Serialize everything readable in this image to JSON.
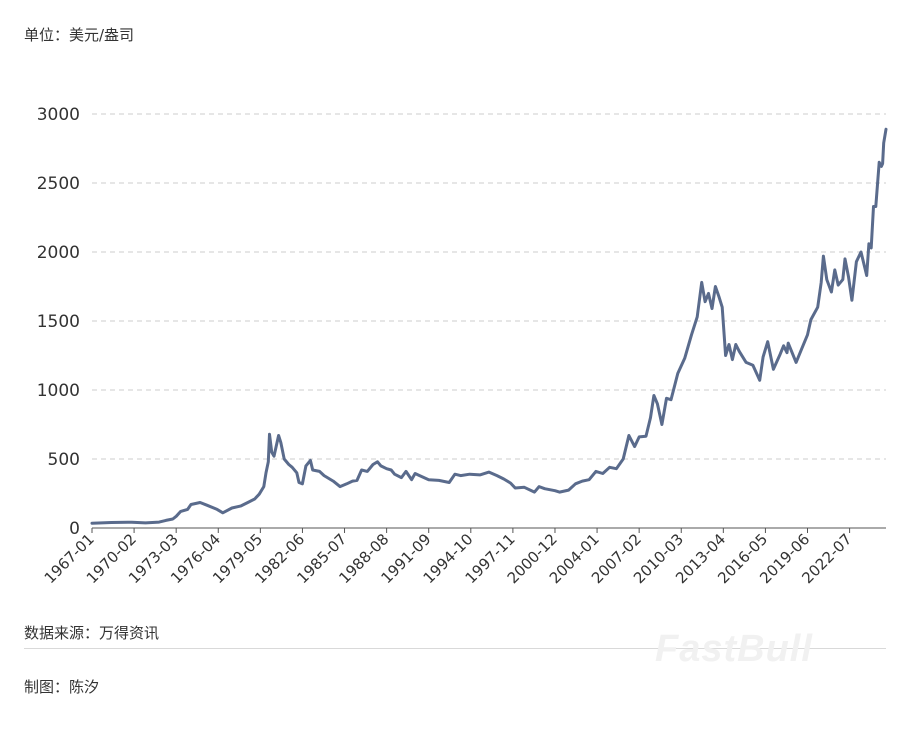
{
  "chart_data": {
    "type": "line",
    "unit_label": "单位：美元/盎司",
    "title": "",
    "xlabel": "",
    "ylabel": "",
    "ylim": [
      0,
      3000
    ],
    "y_ticks": [
      0,
      500,
      1000,
      1500,
      2000,
      2500,
      3000
    ],
    "x_tick_labels": [
      "1967-01",
      "1970-02",
      "1973-03",
      "1976-04",
      "1979-05",
      "1982-06",
      "1985-07",
      "1988-08",
      "1991-09",
      "1994-10",
      "1997-11",
      "2000-12",
      "2004-01",
      "2007-02",
      "2010-03",
      "2013-04",
      "2016-05",
      "2019-06",
      "2022-07"
    ],
    "x_range": [
      "1967-01",
      "2025-03"
    ],
    "grid": "horizontal dashed",
    "legend": "none",
    "series": [
      {
        "color": "#5a6b8c",
        "points": [
          [
            "1967-01",
            35
          ],
          [
            "1968-06",
            40
          ],
          [
            "1969-12",
            42
          ],
          [
            "1970-12",
            37
          ],
          [
            "1971-12",
            43
          ],
          [
            "1972-06",
            55
          ],
          [
            "1972-12",
            65
          ],
          [
            "1973-03",
            85
          ],
          [
            "1973-07",
            120
          ],
          [
            "1974-01",
            135
          ],
          [
            "1974-04",
            170
          ],
          [
            "1974-12",
            185
          ],
          [
            "1975-06",
            165
          ],
          [
            "1976-03",
            135
          ],
          [
            "1976-08",
            110
          ],
          [
            "1977-04",
            145
          ],
          [
            "1977-12",
            160
          ],
          [
            "1978-06",
            185
          ],
          [
            "1978-12",
            210
          ],
          [
            "1979-04",
            245
          ],
          [
            "1979-08",
            300
          ],
          [
            "1979-10",
            400
          ],
          [
            "1979-12",
            480
          ],
          [
            "1980-01",
            680
          ],
          [
            "1980-03",
            550
          ],
          [
            "1980-05",
            520
          ],
          [
            "1980-09",
            670
          ],
          [
            "1980-11",
            620
          ],
          [
            "1981-02",
            500
          ],
          [
            "1981-06",
            460
          ],
          [
            "1981-09",
            440
          ],
          [
            "1982-01",
            400
          ],
          [
            "1982-03",
            330
          ],
          [
            "1982-06",
            320
          ],
          [
            "1982-09",
            450
          ],
          [
            "1983-01",
            490
          ],
          [
            "1983-03",
            420
          ],
          [
            "1983-09",
            410
          ],
          [
            "1984-01",
            380
          ],
          [
            "1984-09",
            340
          ],
          [
            "1985-03",
            300
          ],
          [
            "1985-09",
            320
          ],
          [
            "1986-02",
            340
          ],
          [
            "1986-06",
            345
          ],
          [
            "1986-10",
            420
          ],
          [
            "1987-03",
            410
          ],
          [
            "1987-08",
            460
          ],
          [
            "1987-12",
            480
          ],
          [
            "1988-03",
            450
          ],
          [
            "1988-08",
            430
          ],
          [
            "1988-12",
            420
          ],
          [
            "1989-03",
            390
          ],
          [
            "1989-09",
            365
          ],
          [
            "1990-01",
            410
          ],
          [
            "1990-06",
            350
          ],
          [
            "1990-09",
            395
          ],
          [
            "1991-01",
            380
          ],
          [
            "1991-09",
            350
          ],
          [
            "1992-06",
            345
          ],
          [
            "1993-03",
            330
          ],
          [
            "1993-08",
            390
          ],
          [
            "1994-01",
            380
          ],
          [
            "1994-09",
            390
          ],
          [
            "1995-06",
            385
          ],
          [
            "1996-02",
            405
          ],
          [
            "1996-09",
            380
          ],
          [
            "1997-03",
            355
          ],
          [
            "1997-09",
            325
          ],
          [
            "1998-01",
            290
          ],
          [
            "1998-09",
            295
          ],
          [
            "1999-06",
            260
          ],
          [
            "1999-10",
            300
          ],
          [
            "2000-03",
            285
          ],
          [
            "2000-12",
            270
          ],
          [
            "2001-04",
            260
          ],
          [
            "2001-12",
            275
          ],
          [
            "2002-06",
            320
          ],
          [
            "2002-12",
            340
          ],
          [
            "2003-06",
            350
          ],
          [
            "2003-12",
            410
          ],
          [
            "2004-06",
            395
          ],
          [
            "2004-12",
            440
          ],
          [
            "2005-06",
            430
          ],
          [
            "2005-12",
            500
          ],
          [
            "2006-05",
            670
          ],
          [
            "2006-10",
            590
          ],
          [
            "2007-02",
            660
          ],
          [
            "2007-08",
            665
          ],
          [
            "2007-12",
            800
          ],
          [
            "2008-03",
            960
          ],
          [
            "2008-06",
            900
          ],
          [
            "2008-10",
            750
          ],
          [
            "2009-02",
            940
          ],
          [
            "2009-06",
            930
          ],
          [
            "2009-12",
            1120
          ],
          [
            "2010-06",
            1230
          ],
          [
            "2010-12",
            1400
          ],
          [
            "2011-05",
            1530
          ],
          [
            "2011-09",
            1780
          ],
          [
            "2011-12",
            1640
          ],
          [
            "2012-03",
            1700
          ],
          [
            "2012-06",
            1590
          ],
          [
            "2012-09",
            1750
          ],
          [
            "2012-12",
            1680
          ],
          [
            "2013-03",
            1600
          ],
          [
            "2013-06",
            1250
          ],
          [
            "2013-09",
            1330
          ],
          [
            "2013-12",
            1220
          ],
          [
            "2014-03",
            1330
          ],
          [
            "2014-06",
            1280
          ],
          [
            "2014-12",
            1200
          ],
          [
            "2015-06",
            1180
          ],
          [
            "2015-12",
            1070
          ],
          [
            "2016-03",
            1240
          ],
          [
            "2016-07",
            1350
          ],
          [
            "2016-12",
            1150
          ],
          [
            "2017-06",
            1260
          ],
          [
            "2017-09",
            1320
          ],
          [
            "2017-12",
            1270
          ],
          [
            "2018-01",
            1340
          ],
          [
            "2018-08",
            1200
          ],
          [
            "2019-01",
            1300
          ],
          [
            "2019-06",
            1400
          ],
          [
            "2019-09",
            1510
          ],
          [
            "2020-03",
            1600
          ],
          [
            "2020-06",
            1780
          ],
          [
            "2020-08",
            1970
          ],
          [
            "2020-11",
            1800
          ],
          [
            "2021-03",
            1710
          ],
          [
            "2021-06",
            1870
          ],
          [
            "2021-09",
            1760
          ],
          [
            "2022-01",
            1800
          ],
          [
            "2022-03",
            1950
          ],
          [
            "2022-06",
            1820
          ],
          [
            "2022-09",
            1650
          ],
          [
            "2023-01",
            1930
          ],
          [
            "2023-05",
            2000
          ],
          [
            "2023-10",
            1830
          ],
          [
            "2023-12",
            2060
          ],
          [
            "2024-02",
            2030
          ],
          [
            "2024-04",
            2330
          ],
          [
            "2024-06",
            2330
          ],
          [
            "2024-09",
            2650
          ],
          [
            "2024-11",
            2620
          ],
          [
            "2024-12",
            2640
          ],
          [
            "2025-01",
            2790
          ],
          [
            "2025-03",
            2890
          ]
        ]
      }
    ]
  },
  "footer": {
    "source": "数据来源：万得资讯",
    "maker": "制图：陈汐",
    "watermark": "FastBull"
  },
  "colors": {
    "line": "#5a6b8c",
    "grid": "#cccccc",
    "axis": "#555555"
  }
}
